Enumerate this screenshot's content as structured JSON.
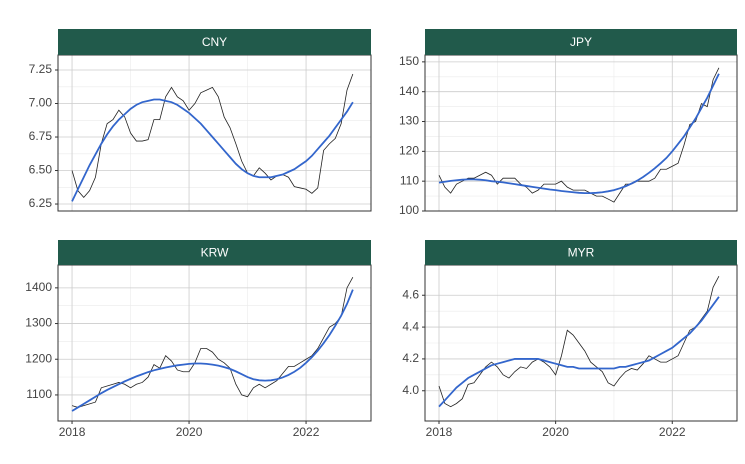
{
  "chart_data": [
    {
      "type": "line",
      "title": "CNY",
      "x": [
        2018.0,
        2018.1,
        2018.2,
        2018.3,
        2018.4,
        2018.5,
        2018.6,
        2018.7,
        2018.8,
        2018.9,
        2019.0,
        2019.1,
        2019.2,
        2019.3,
        2019.4,
        2019.5,
        2019.6,
        2019.7,
        2019.8,
        2019.9,
        2020.0,
        2020.1,
        2020.2,
        2020.3,
        2020.4,
        2020.5,
        2020.6,
        2020.7,
        2020.8,
        2020.9,
        2021.0,
        2021.1,
        2021.2,
        2021.3,
        2021.4,
        2021.5,
        2021.6,
        2021.7,
        2021.8,
        2021.9,
        2022.0,
        2022.1,
        2022.2,
        2022.3,
        2022.4,
        2022.5,
        2022.6,
        2022.7,
        2022.8
      ],
      "series": [
        {
          "color": "#222222",
          "values": [
            6.5,
            6.35,
            6.3,
            6.35,
            6.45,
            6.7,
            6.85,
            6.88,
            6.95,
            6.9,
            6.78,
            6.72,
            6.72,
            6.73,
            6.88,
            6.88,
            7.05,
            7.12,
            7.05,
            7.02,
            6.95,
            7.0,
            7.08,
            7.1,
            7.12,
            7.05,
            6.9,
            6.82,
            6.7,
            6.57,
            6.48,
            6.46,
            6.52,
            6.48,
            6.43,
            6.46,
            6.47,
            6.45,
            6.38,
            6.37,
            6.36,
            6.33,
            6.37,
            6.65,
            6.7,
            6.74,
            6.85,
            7.1,
            7.22
          ]
        },
        {
          "color": "#3366cc",
          "values": [
            6.27,
            6.36,
            6.45,
            6.54,
            6.62,
            6.7,
            6.77,
            6.83,
            6.88,
            6.92,
            6.96,
            6.99,
            7.01,
            7.02,
            7.03,
            7.03,
            7.02,
            7.01,
            6.99,
            6.96,
            6.93,
            6.89,
            6.85,
            6.8,
            6.75,
            6.7,
            6.65,
            6.6,
            6.55,
            6.51,
            6.48,
            6.46,
            6.45,
            6.45,
            6.45,
            6.46,
            6.47,
            6.49,
            6.51,
            6.54,
            6.57,
            6.61,
            6.66,
            6.71,
            6.76,
            6.82,
            6.88,
            6.94,
            7.01
          ]
        }
      ],
      "xlim": [
        2017.76,
        2023.11
      ],
      "xticks": [
        2018,
        2020,
        2022
      ],
      "ylim": [
        6.198,
        7.362
      ],
      "yticks": [
        6.25,
        {
          "value": 6.5,
          "label": "6.50"
        },
        6.75,
        {
          "value": 7,
          "label": "7.00"
        },
        7.25
      ]
    },
    {
      "type": "line",
      "title": "JPY",
      "x": [
        2018.0,
        2018.1,
        2018.2,
        2018.3,
        2018.4,
        2018.5,
        2018.6,
        2018.7,
        2018.8,
        2018.9,
        2019.0,
        2019.1,
        2019.2,
        2019.3,
        2019.4,
        2019.5,
        2019.6,
        2019.7,
        2019.8,
        2019.9,
        2020.0,
        2020.1,
        2020.2,
        2020.3,
        2020.4,
        2020.5,
        2020.6,
        2020.7,
        2020.8,
        2020.9,
        2021.0,
        2021.1,
        2021.2,
        2021.3,
        2021.4,
        2021.5,
        2021.6,
        2021.7,
        2021.8,
        2021.9,
        2022.0,
        2022.1,
        2022.2,
        2022.3,
        2022.4,
        2022.5,
        2022.6,
        2022.7,
        2022.8
      ],
      "series": [
        {
          "color": "#222222",
          "values": [
            112,
            108,
            106,
            109,
            110,
            111,
            111,
            112,
            113,
            112,
            109,
            111,
            111,
            111,
            109,
            108,
            106,
            107,
            109,
            109,
            109,
            110,
            108,
            107,
            107,
            107,
            106,
            105,
            105,
            104,
            103,
            106,
            109,
            109,
            110,
            110,
            110,
            111,
            114,
            114,
            115,
            116,
            122,
            129,
            130,
            136,
            135,
            144,
            148
          ]
        },
        {
          "color": "#3366cc",
          "values": [
            109.5,
            109.8,
            110.1,
            110.3,
            110.5,
            110.6,
            110.6,
            110.5,
            110.3,
            110.0,
            109.8,
            109.6,
            109.3,
            109.0,
            108.7,
            108.4,
            108.1,
            107.8,
            107.5,
            107.2,
            107.0,
            106.7,
            106.5,
            106.3,
            106.1,
            106.0,
            106.0,
            106.1,
            106.3,
            106.6,
            107.0,
            107.6,
            108.3,
            109.2,
            110.2,
            111.4,
            112.8,
            114.3,
            116.0,
            117.8,
            120.0,
            122.5,
            125.0,
            128.0,
            131.0,
            134.5,
            138.0,
            142.0,
            146.0
          ]
        }
      ],
      "xlim": [
        2017.76,
        2023.11
      ],
      "xticks": [
        2018,
        2020,
        2022
      ],
      "ylim": [
        100,
        152.3
      ],
      "yticks": [
        100,
        110,
        120,
        130,
        140,
        150
      ]
    },
    {
      "type": "line",
      "title": "KRW",
      "x": [
        2018.0,
        2018.1,
        2018.2,
        2018.3,
        2018.4,
        2018.5,
        2018.6,
        2018.7,
        2018.8,
        2018.9,
        2019.0,
        2019.1,
        2019.2,
        2019.3,
        2019.4,
        2019.5,
        2019.6,
        2019.7,
        2019.8,
        2019.9,
        2020.0,
        2020.1,
        2020.2,
        2020.3,
        2020.4,
        2020.5,
        2020.6,
        2020.7,
        2020.8,
        2020.9,
        2021.0,
        2021.1,
        2021.2,
        2021.3,
        2021.4,
        2021.5,
        2021.6,
        2021.7,
        2021.8,
        2021.9,
        2022.0,
        2022.1,
        2022.2,
        2022.3,
        2022.4,
        2022.5,
        2022.6,
        2022.7,
        2022.8
      ],
      "series": [
        {
          "color": "#222222",
          "values": [
            1070,
            1065,
            1070,
            1075,
            1080,
            1120,
            1125,
            1130,
            1135,
            1130,
            1120,
            1130,
            1135,
            1150,
            1185,
            1175,
            1210,
            1195,
            1170,
            1165,
            1165,
            1190,
            1230,
            1230,
            1220,
            1200,
            1190,
            1175,
            1130,
            1100,
            1095,
            1120,
            1130,
            1120,
            1130,
            1140,
            1160,
            1180,
            1180,
            1190,
            1200,
            1210,
            1230,
            1260,
            1290,
            1300,
            1320,
            1400,
            1430
          ]
        },
        {
          "color": "#3366cc",
          "values": [
            1055,
            1065,
            1075,
            1085,
            1095,
            1105,
            1114,
            1122,
            1130,
            1138,
            1145,
            1152,
            1158,
            1164,
            1169,
            1173,
            1177,
            1180,
            1183,
            1185,
            1187,
            1188,
            1188,
            1187,
            1185,
            1182,
            1178,
            1173,
            1166,
            1158,
            1150,
            1144,
            1141,
            1140,
            1141,
            1144,
            1149,
            1156,
            1165,
            1176,
            1190,
            1206,
            1224,
            1245,
            1268,
            1294,
            1322,
            1355,
            1395
          ]
        }
      ],
      "xlim": [
        2017.76,
        2023.11
      ],
      "xticks": [
        2018,
        2020,
        2022
      ],
      "ylim": [
        1027,
        1464
      ],
      "yticks": [
        1100,
        1200,
        1300,
        1400
      ]
    },
    {
      "type": "line",
      "title": "MYR",
      "x": [
        2018.0,
        2018.1,
        2018.2,
        2018.3,
        2018.4,
        2018.5,
        2018.6,
        2018.7,
        2018.8,
        2018.9,
        2019.0,
        2019.1,
        2019.2,
        2019.3,
        2019.4,
        2019.5,
        2019.6,
        2019.7,
        2019.8,
        2019.9,
        2020.0,
        2020.1,
        2020.2,
        2020.3,
        2020.4,
        2020.5,
        2020.6,
        2020.7,
        2020.8,
        2020.9,
        2021.0,
        2021.1,
        2021.2,
        2021.3,
        2021.4,
        2021.5,
        2021.6,
        2021.7,
        2021.8,
        2021.9,
        2022.0,
        2022.1,
        2022.2,
        2022.3,
        2022.4,
        2022.5,
        2022.6,
        2022.7,
        2022.8
      ],
      "series": [
        {
          "color": "#222222",
          "values": [
            4.03,
            3.92,
            3.9,
            3.92,
            3.95,
            4.04,
            4.05,
            4.1,
            4.15,
            4.18,
            4.15,
            4.1,
            4.08,
            4.12,
            4.15,
            4.14,
            4.18,
            4.2,
            4.18,
            4.15,
            4.1,
            4.22,
            4.38,
            4.35,
            4.3,
            4.25,
            4.18,
            4.15,
            4.12,
            4.05,
            4.03,
            4.08,
            4.12,
            4.14,
            4.13,
            4.17,
            4.22,
            4.2,
            4.18,
            4.18,
            4.2,
            4.22,
            4.3,
            4.38,
            4.4,
            4.45,
            4.5,
            4.65,
            4.72
          ]
        },
        {
          "color": "#3366cc",
          "values": [
            3.9,
            3.94,
            3.98,
            4.02,
            4.05,
            4.08,
            4.1,
            4.12,
            4.14,
            4.16,
            4.17,
            4.18,
            4.19,
            4.2,
            4.2,
            4.2,
            4.2,
            4.2,
            4.19,
            4.18,
            4.17,
            4.16,
            4.15,
            4.15,
            4.14,
            4.14,
            4.14,
            4.14,
            4.14,
            4.14,
            4.14,
            4.15,
            4.15,
            4.16,
            4.17,
            4.18,
            4.19,
            4.21,
            4.23,
            4.25,
            4.27,
            4.3,
            4.33,
            4.36,
            4.4,
            4.44,
            4.49,
            4.54,
            4.59
          ]
        }
      ],
      "xlim": [
        2017.76,
        2023.11
      ],
      "xticks": [
        2018,
        2020,
        2022
      ],
      "ylim": [
        3.81,
        4.79
      ],
      "yticks": [
        {
          "value": 4,
          "label": "4.0"
        },
        4.2,
        4.4,
        4.6
      ]
    }
  ]
}
